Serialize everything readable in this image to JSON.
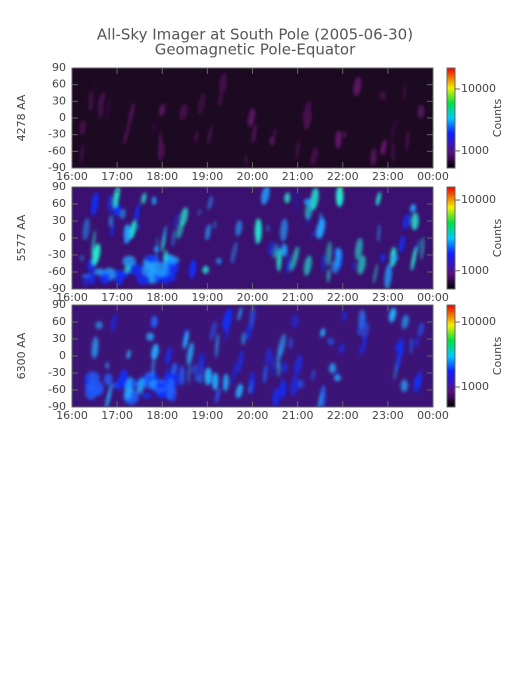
{
  "title": "All-Sky Imager at South Pole (2005-06-30)",
  "subtitle": "Geomagnetic Pole-Equator",
  "chart_data": [
    {
      "type": "heatmap",
      "ylabel": "4278 AA",
      "xlim": [
        16,
        24
      ],
      "xticks": [
        {
          "value": 16,
          "label": "16:00"
        },
        {
          "value": 17,
          "label": "17:00"
        },
        {
          "value": 18,
          "label": "18:00"
        },
        {
          "value": 19,
          "label": "19:00"
        },
        {
          "value": 20,
          "label": "20:00"
        },
        {
          "value": 21,
          "label": "21:00"
        },
        {
          "value": 22,
          "label": "22:00"
        },
        {
          "value": 23,
          "label": "23:00"
        },
        {
          "value": 24,
          "label": "00:00"
        }
      ],
      "ylim": [
        -90,
        90
      ],
      "yticks": [
        -90,
        -60,
        -30,
        0,
        30,
        60,
        90
      ],
      "colorbar": {
        "label": "Counts",
        "log": true,
        "lim": [
          530,
          21800
        ],
        "ticks": [
          1000,
          10000
        ]
      }
    },
    {
      "type": "heatmap",
      "ylabel": "5577 AA",
      "xlim": [
        16,
        24
      ],
      "xticks": [
        {
          "value": 16,
          "label": "16:00"
        },
        {
          "value": 17,
          "label": "17:00"
        },
        {
          "value": 18,
          "label": "18:00"
        },
        {
          "value": 19,
          "label": "19:00"
        },
        {
          "value": 20,
          "label": "20:00"
        },
        {
          "value": 21,
          "label": "21:00"
        },
        {
          "value": 22,
          "label": "22:00"
        },
        {
          "value": 23,
          "label": "23:00"
        },
        {
          "value": 24,
          "label": "00:00"
        }
      ],
      "ylim": [
        -90,
        90
      ],
      "yticks": [
        -90,
        -60,
        -30,
        0,
        30,
        60,
        90
      ],
      "colorbar": {
        "label": "Counts",
        "log": true,
        "lim": [
          552,
          15300
        ],
        "ticks": [
          1000,
          10000
        ]
      }
    },
    {
      "type": "heatmap",
      "ylabel": "6300 AA",
      "xlim": [
        16,
        24
      ],
      "xticks": [
        {
          "value": 16,
          "label": "16:00"
        },
        {
          "value": 17,
          "label": "17:00"
        },
        {
          "value": 18,
          "label": "18:00"
        },
        {
          "value": 19,
          "label": "19:00"
        },
        {
          "value": 20,
          "label": "20:00"
        },
        {
          "value": 21,
          "label": "21:00"
        },
        {
          "value": 22,
          "label": "22:00"
        },
        {
          "value": 23,
          "label": "23:00"
        },
        {
          "value": 24,
          "label": "00:00"
        }
      ],
      "ylim": [
        -90,
        90
      ],
      "yticks": [
        -90,
        -60,
        -30,
        0,
        30,
        60,
        90
      ],
      "colorbar": {
        "label": "Counts",
        "log": true,
        "lim": [
          492,
          18300
        ],
        "ticks": [
          1000,
          10000
        ]
      }
    }
  ]
}
